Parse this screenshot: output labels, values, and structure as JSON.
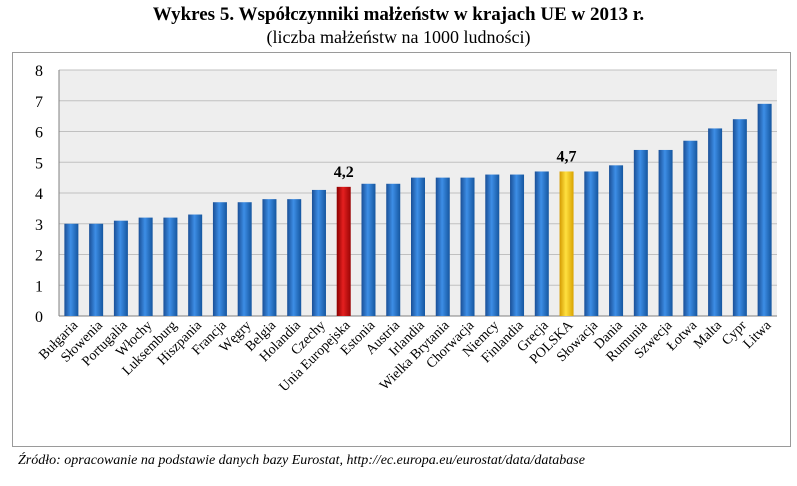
{
  "title": "Wykres 5. Współczynniki małżeństw w krajach UE w 2013 r.",
  "subtitle": "(liczba małżeństw na 1000 ludności)",
  "source": "Źródło: opracowanie na podstawie danych bazy Eurostat, http://ec.europa.eu/eurostat/data/database",
  "colors": {
    "default_bar": "#1f6fc5",
    "highlight_eu": "#d01010",
    "highlight_poland": "#f5c400",
    "grid": "#c0c0c0",
    "plot_bg": "#eeeeee"
  },
  "chart_data": {
    "type": "bar",
    "title": "Wykres 5. Współczynniki małżeństw w krajach UE w 2013 r.",
    "subtitle": "(liczba małżeństw na 1000 ludności)",
    "xlabel": "",
    "ylabel": "",
    "ylim": [
      0,
      8
    ],
    "yticks": [
      "0",
      "1",
      "2",
      "3",
      "4",
      "5",
      "6",
      "7",
      "8"
    ],
    "grid": true,
    "categories": [
      "Bułgaria",
      "Słowenia",
      "Portugalia",
      "Włochy",
      "Luksemburg",
      "Hiszpania",
      "Francja",
      "Węgry",
      "Belgia",
      "Holandia",
      "Czechy",
      "Unia Europejska",
      "Estonia",
      "Austria",
      "Irlandia",
      "Wielka Brytania",
      "Chorwacja",
      "Niemcy",
      "Finlandia",
      "Grecja",
      "POLSKA",
      "Słowacja",
      "Dania",
      "Rumunia",
      "Szwecja",
      "Łotwa",
      "Malta",
      "Cypr",
      "Litwa"
    ],
    "values": [
      3.0,
      3.0,
      3.1,
      3.2,
      3.2,
      3.3,
      3.7,
      3.7,
      3.8,
      3.8,
      4.1,
      4.2,
      4.3,
      4.3,
      4.5,
      4.5,
      4.5,
      4.6,
      4.6,
      4.7,
      4.7,
      4.7,
      4.9,
      5.4,
      5.4,
      5.7,
      6.1,
      6.4,
      6.9
    ],
    "data_labels": [
      {
        "category": "Unia Europejska",
        "text": "4,2"
      },
      {
        "category": "POLSKA",
        "text": "4,7"
      }
    ],
    "highlights": {
      "Unia Europejska": "highlight_eu",
      "POLSKA": "highlight_poland"
    }
  }
}
